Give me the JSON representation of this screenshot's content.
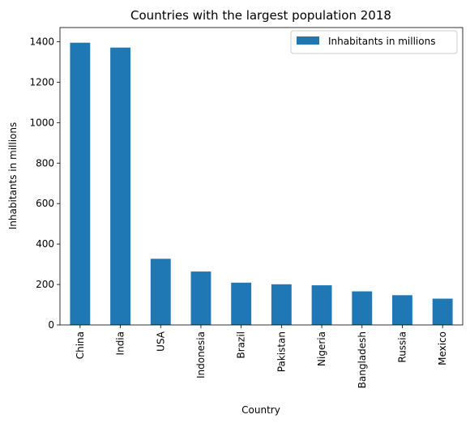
{
  "chart_data": {
    "type": "bar",
    "title": "Countries with the largest population 2018",
    "xlabel": "Country",
    "ylabel": "Inhabitants in millions",
    "categories": [
      "China",
      "India",
      "USA",
      "Indonesia",
      "Brazil",
      "Pakistan",
      "Nigeria",
      "Bangladesh",
      "Russia",
      "Mexico"
    ],
    "series": [
      {
        "name": "Inhabitants in millions",
        "color": "#1f77b4",
        "values": [
          1395,
          1371,
          327,
          264,
          209,
          201,
          196,
          166,
          147,
          130
        ]
      }
    ],
    "ylim": [
      0,
      1470
    ],
    "yticks": [
      0,
      200,
      400,
      600,
      800,
      1000,
      1200,
      1400
    ],
    "grid": false,
    "legend_position": "top-right"
  }
}
